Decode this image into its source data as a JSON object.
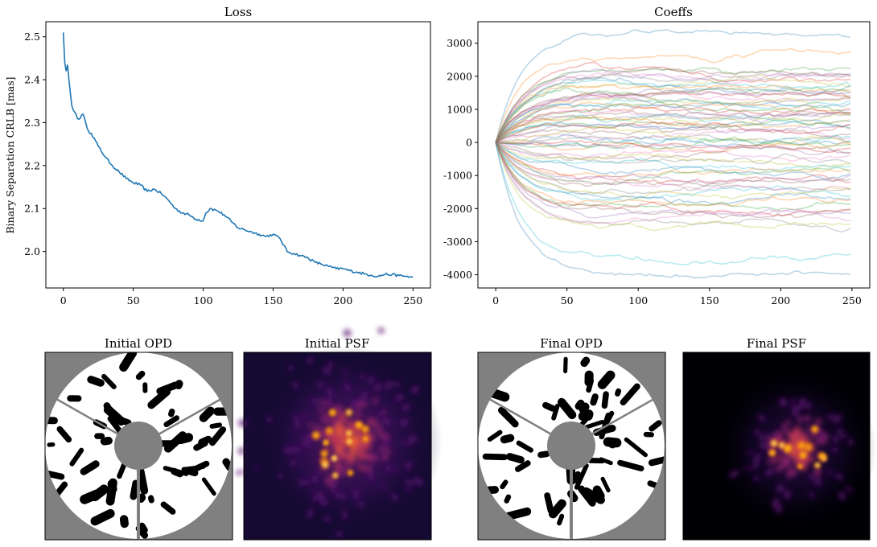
{
  "figure": {
    "panels": {
      "loss": {
        "title": "Loss"
      },
      "coeffs": {
        "title": "Coeffs"
      },
      "initial_opd": {
        "title": "Initial OPD"
      },
      "initial_psf": {
        "title": "Initial PSF"
      },
      "final_opd": {
        "title": "Final OPD"
      },
      "final_psf": {
        "title": "Final PSF"
      }
    }
  },
  "chart_data": [
    {
      "type": "line",
      "title": "Loss",
      "xlabel": "",
      "ylabel": "Binary Separation CRLB [mas]",
      "xlim": [
        -12.5,
        262.5
      ],
      "ylim": [
        1.915,
        2.535
      ],
      "xticks": [
        0,
        50,
        100,
        150,
        200,
        250
      ],
      "yticks": [
        2.0,
        2.1,
        2.2,
        2.3,
        2.4,
        2.5
      ],
      "ytick_labels": [
        "2.0",
        "2.1",
        "2.2",
        "2.3",
        "2.4",
        "2.5"
      ],
      "grid": false,
      "color": "#1f77b4",
      "series": [
        {
          "x": [
            0,
            1,
            2,
            3,
            4,
            5,
            6,
            7,
            8,
            9,
            10,
            12,
            14,
            16,
            18,
            20,
            25,
            30,
            35,
            40,
            45,
            50,
            55,
            60,
            65,
            70,
            75,
            80,
            85,
            90,
            95,
            100,
            102,
            105,
            110,
            115,
            120,
            125,
            130,
            135,
            140,
            145,
            150,
            155,
            160,
            165,
            170,
            175,
            180,
            185,
            190,
            195,
            200,
            205,
            210,
            215,
            220,
            225,
            230,
            235,
            240,
            245,
            250
          ],
          "y": [
            2.51,
            2.44,
            2.42,
            2.435,
            2.4,
            2.37,
            2.34,
            2.33,
            2.325,
            2.32,
            2.31,
            2.31,
            2.32,
            2.3,
            2.28,
            2.275,
            2.245,
            2.22,
            2.2,
            2.185,
            2.17,
            2.16,
            2.155,
            2.14,
            2.145,
            2.135,
            2.12,
            2.1,
            2.09,
            2.085,
            2.075,
            2.072,
            2.09,
            2.1,
            2.095,
            2.085,
            2.07,
            2.055,
            2.05,
            2.045,
            2.04,
            2.035,
            2.04,
            2.03,
            2.0,
            1.995,
            1.99,
            1.985,
            1.975,
            1.97,
            1.965,
            1.96,
            1.96,
            1.955,
            1.952,
            1.948,
            1.945,
            1.942,
            1.947,
            1.946,
            1.944,
            1.942,
            1.94
          ]
        }
      ]
    },
    {
      "type": "line",
      "title": "Coeffs",
      "xlabel": "",
      "ylabel": "",
      "xlim": [
        -12.5,
        262.5
      ],
      "ylim": [
        -4400,
        3650
      ],
      "xticks": [
        0,
        50,
        100,
        150,
        200,
        250
      ],
      "yticks": [
        -4000,
        -3000,
        -2000,
        -1000,
        0,
        1000,
        2000,
        3000
      ],
      "grid": false,
      "line_alpha": 0.3,
      "palette": [
        "#1f77b4",
        "#ff7f0e",
        "#2ca02c",
        "#d62728",
        "#9467bd",
        "#8c564b",
        "#e377c2",
        "#7f7f7f",
        "#bcbd22",
        "#17becf"
      ],
      "x": [
        0,
        5,
        10,
        20,
        35,
        50,
        75,
        100,
        125,
        150,
        175,
        200,
        225,
        250
      ],
      "final_values": [
        3280,
        2760,
        2200,
        2100,
        2050,
        2000,
        1950,
        1900,
        1850,
        1800,
        1700,
        1650,
        1600,
        1500,
        1450,
        1400,
        1350,
        1300,
        1250,
        1200,
        1150,
        1100,
        1050,
        1000,
        950,
        900,
        850,
        800,
        750,
        700,
        650,
        600,
        550,
        500,
        400,
        300,
        200,
        150,
        100,
        50,
        0,
        -50,
        -100,
        -150,
        -200,
        -300,
        -400,
        -500,
        -600,
        -700,
        -800,
        -900,
        -1000,
        -1050,
        -1100,
        -1200,
        -1300,
        -1400,
        -1500,
        -1600,
        -1700,
        -1800,
        -1900,
        -2000,
        -2100,
        -2200,
        -2300,
        -2400,
        -2550,
        -3600,
        -4050
      ]
    }
  ],
  "images": {
    "opd_colors": {
      "outside": "#808080",
      "high": "#ffffff",
      "low": "#000000"
    },
    "psf_colormap": [
      "#000004",
      "#1f0c48",
      "#550f6d",
      "#88226a",
      "#ba3655",
      "#e35933",
      "#f98e09",
      "#fbc127",
      "#fcffa4"
    ]
  }
}
